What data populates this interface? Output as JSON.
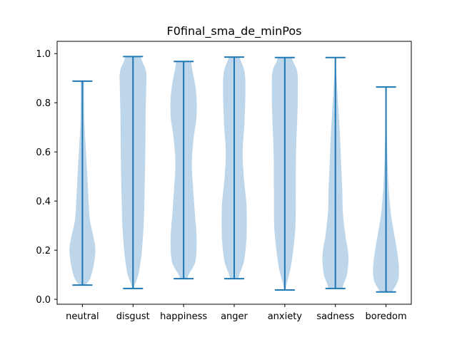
{
  "chart_data": {
    "type": "violin",
    "title": "F0final_sma_de_minPos",
    "xlabel": "",
    "ylabel": "",
    "ylim": [
      -0.02,
      1.05
    ],
    "yticks": [
      "0.0",
      "0.2",
      "0.4",
      "0.6",
      "0.8",
      "1.0"
    ],
    "ytick_values": [
      0.0,
      0.2,
      0.4,
      0.6,
      0.8,
      1.0
    ],
    "categories": [
      "neutral",
      "disgust",
      "happiness",
      "anger",
      "anxiety",
      "sadness",
      "boredom"
    ],
    "colors": {
      "body": "#b9d4e8",
      "line": "#1f77b4"
    },
    "series": [
      {
        "name": "neutral",
        "min": 0.058,
        "max": 0.888,
        "density": [
          [
            0.058,
            0.25
          ],
          [
            0.08,
            0.55
          ],
          [
            0.13,
            0.8
          ],
          [
            0.2,
            0.95
          ],
          [
            0.25,
            0.82
          ],
          [
            0.32,
            0.55
          ],
          [
            0.4,
            0.45
          ],
          [
            0.5,
            0.36
          ],
          [
            0.6,
            0.26
          ],
          [
            0.7,
            0.16
          ],
          [
            0.8,
            0.12
          ],
          [
            0.888,
            0.12
          ]
        ]
      },
      {
        "name": "disgust",
        "min": 0.044,
        "max": 0.988,
        "density": [
          [
            0.044,
            0.05
          ],
          [
            0.1,
            0.4
          ],
          [
            0.18,
            0.62
          ],
          [
            0.3,
            0.78
          ],
          [
            0.45,
            0.85
          ],
          [
            0.6,
            0.9
          ],
          [
            0.75,
            0.92
          ],
          [
            0.85,
            0.96
          ],
          [
            0.93,
            0.95
          ],
          [
            0.988,
            0.55
          ]
        ]
      },
      {
        "name": "happiness",
        "min": 0.084,
        "max": 0.968,
        "density": [
          [
            0.084,
            0.25
          ],
          [
            0.15,
            0.85
          ],
          [
            0.25,
            0.95
          ],
          [
            0.35,
            0.82
          ],
          [
            0.45,
            0.7
          ],
          [
            0.55,
            0.6
          ],
          [
            0.65,
            0.72
          ],
          [
            0.75,
            0.95
          ],
          [
            0.85,
            0.9
          ],
          [
            0.968,
            0.55
          ]
        ]
      },
      {
        "name": "anger",
        "min": 0.084,
        "max": 0.986,
        "density": [
          [
            0.084,
            0.3
          ],
          [
            0.15,
            0.7
          ],
          [
            0.25,
            0.9
          ],
          [
            0.38,
            0.9
          ],
          [
            0.5,
            0.7
          ],
          [
            0.6,
            0.62
          ],
          [
            0.72,
            0.75
          ],
          [
            0.85,
            0.82
          ],
          [
            0.93,
            0.75
          ],
          [
            0.986,
            0.4
          ]
        ]
      },
      {
        "name": "anxiety",
        "min": 0.038,
        "max": 0.984,
        "density": [
          [
            0.038,
            0.05
          ],
          [
            0.12,
            0.4
          ],
          [
            0.2,
            0.62
          ],
          [
            0.3,
            0.78
          ],
          [
            0.45,
            0.8
          ],
          [
            0.6,
            0.82
          ],
          [
            0.75,
            0.92
          ],
          [
            0.85,
            0.95
          ],
          [
            0.93,
            0.9
          ],
          [
            0.984,
            0.5
          ]
        ]
      },
      {
        "name": "sadness",
        "min": 0.044,
        "max": 0.984,
        "density": [
          [
            0.044,
            0.5
          ],
          [
            0.1,
            0.85
          ],
          [
            0.18,
            0.95
          ],
          [
            0.25,
            0.75
          ],
          [
            0.35,
            0.55
          ],
          [
            0.45,
            0.5
          ],
          [
            0.55,
            0.42
          ],
          [
            0.65,
            0.35
          ],
          [
            0.75,
            0.25
          ],
          [
            0.85,
            0.14
          ],
          [
            0.93,
            0.06
          ],
          [
            0.984,
            0.02
          ]
        ]
      },
      {
        "name": "boredom",
        "min": 0.03,
        "max": 0.864,
        "density": [
          [
            0.03,
            0.45
          ],
          [
            0.07,
            0.85
          ],
          [
            0.12,
            0.95
          ],
          [
            0.2,
            0.8
          ],
          [
            0.28,
            0.55
          ],
          [
            0.35,
            0.35
          ],
          [
            0.45,
            0.2
          ],
          [
            0.55,
            0.12
          ],
          [
            0.65,
            0.07
          ],
          [
            0.75,
            0.03
          ],
          [
            0.864,
            0.01
          ]
        ]
      }
    ]
  }
}
